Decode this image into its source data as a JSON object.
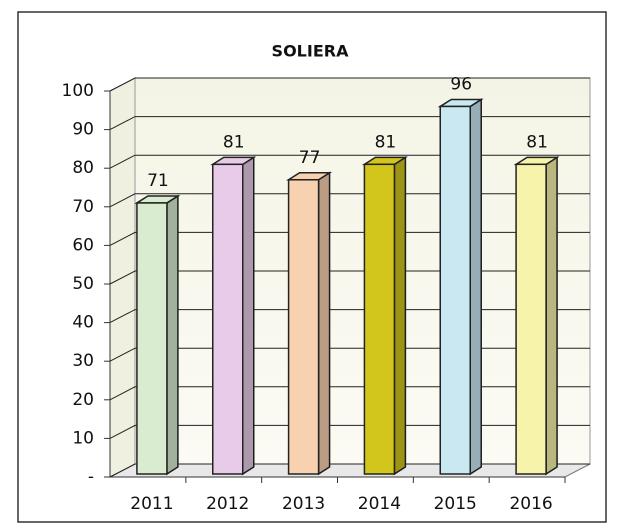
{
  "chart_data": {
    "type": "bar3d",
    "title": "SOLIERA",
    "categories": [
      "2011",
      "2012",
      "2013",
      "2014",
      "2015",
      "2016"
    ],
    "values": [
      71,
      81,
      77,
      81,
      96,
      81
    ],
    "colors": [
      "#d9ecd0",
      "#e8cbe8",
      "#f8d2b0",
      "#d2c61c",
      "#c9e8f2",
      "#f8f3aa"
    ],
    "ylim": [
      0,
      100
    ],
    "yticks": [
      {
        "value": 0,
        "label": "-"
      },
      10,
      20,
      30,
      40,
      50,
      60,
      70,
      80,
      90,
      100
    ],
    "grid": true
  }
}
